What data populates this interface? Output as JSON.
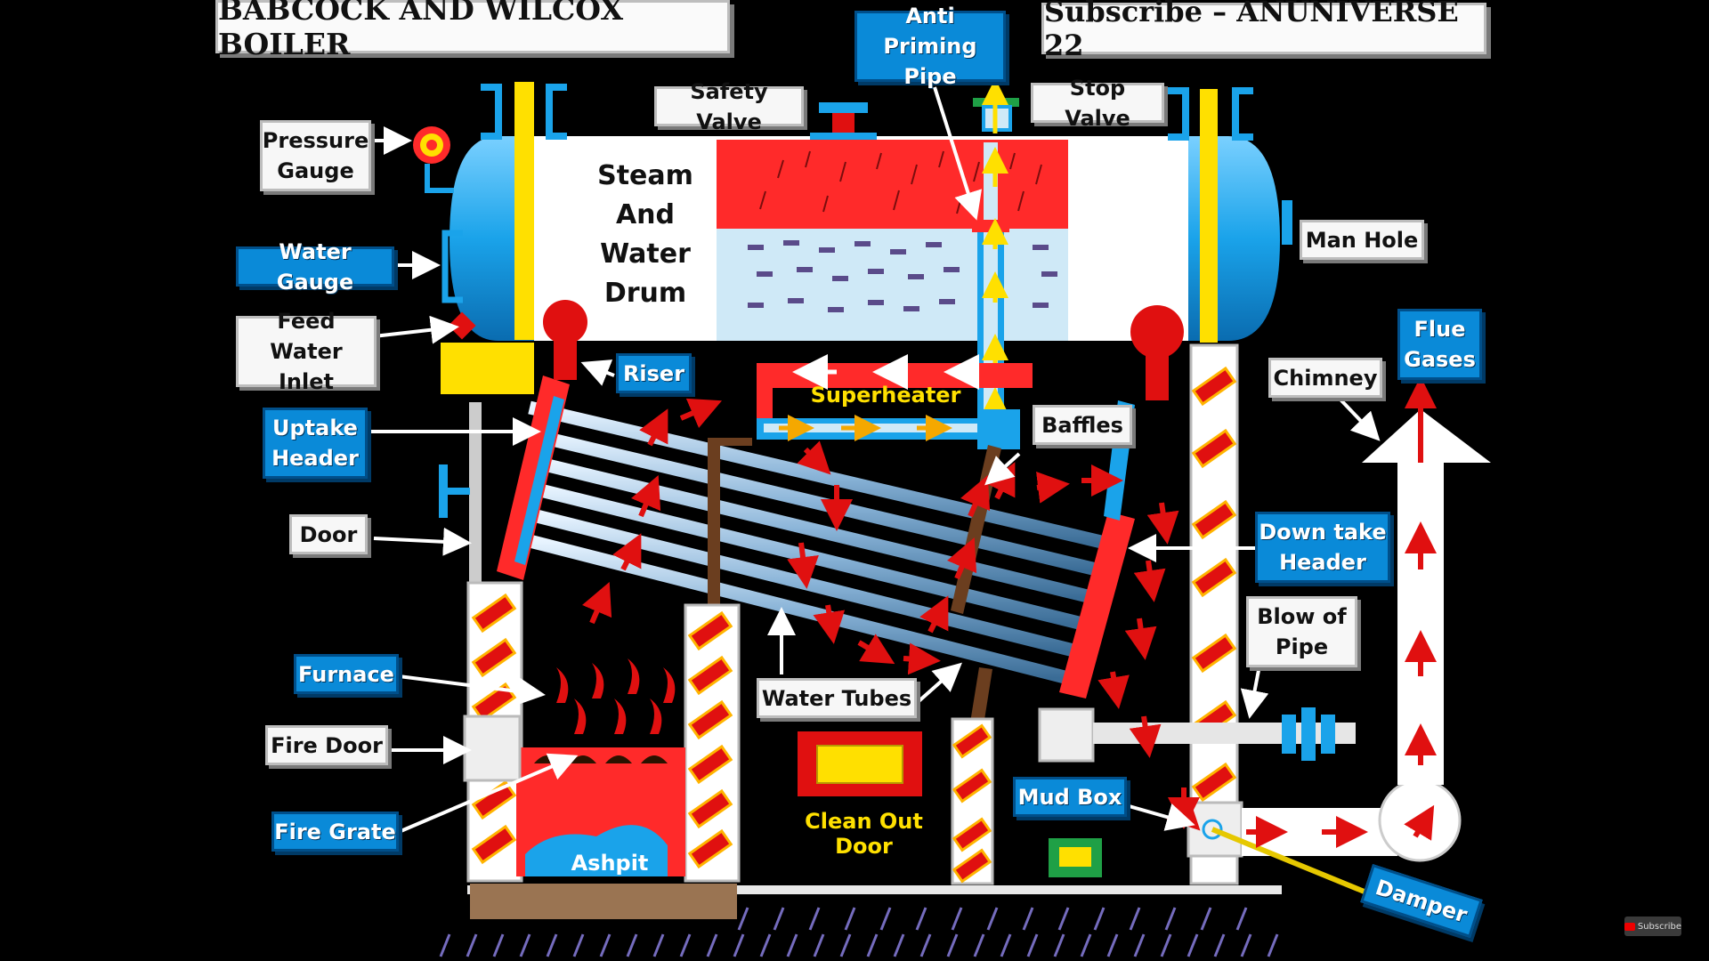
{
  "title": "BABCOCK AND WILCOX BOILER",
  "channel": "Subscribe – ANUNIVERSE 22",
  "drum_text": "Steam\nAnd\nWater\nDrum",
  "labels": {
    "pressure_gauge": "Pressure\nGauge",
    "water_gauge": "Water Gauge",
    "feed_water_inlet": "Feed Water\nInlet",
    "uptake_header": "Uptake\nHeader",
    "door": "Door",
    "furnace": "Furnace",
    "fire_door": "Fire Door",
    "fire_grate": "Fire Grate",
    "ashpit": "Ashpit",
    "safety_valve": "Safety Valve",
    "anti_priming_pipe": "Anti Priming\nPipe",
    "stop_valve": "Stop Valve",
    "man_hole": "Man Hole",
    "riser": "Riser",
    "superheater": "Superheater",
    "baffles": "Baffles",
    "chimney": "Chimney",
    "flue_gases": "Flue\nGases",
    "down_take_header": "Down take\nHeader",
    "blow_of_pipe": "Blow of\nPipe",
    "water_tubes": "Water Tubes",
    "clean_out_door": "Clean Out Door",
    "mud_box": "Mud Box",
    "damper": "Damper"
  },
  "subscribe_badge": "Subscribe",
  "colors": {
    "background": "#000000",
    "label_blue": "#0a8ad8",
    "label_white": "#f7f7f7",
    "drum_blue": "#1aa3ea",
    "steam_red": "#ff2a2a",
    "yellow": "#ffe000",
    "arrow_red": "#e01010"
  }
}
